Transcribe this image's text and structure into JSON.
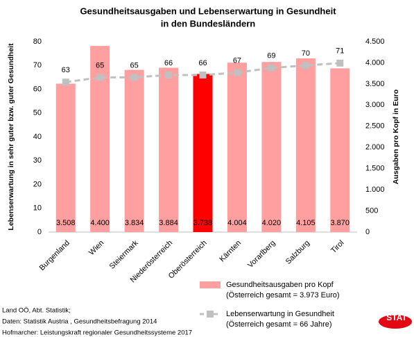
{
  "chart_data": {
    "type": "bar-line",
    "title": [
      "Gesundheitsausgaben und Lebenserwartung in Gesundheit",
      "in den Bundesländern"
    ],
    "ylabel": "Lebenserwartung in sehr guter bzw. guter Gesundheit",
    "y2label": "Ausgaben pro Kopf in Euro",
    "categories": [
      "Burgenland",
      "Wien",
      "Steiermark",
      "Niederösterreich",
      "Oberösterreich",
      "Kärnten",
      "Vorarlberg",
      "Salzburg",
      "Tirol"
    ],
    "ylim": [
      0,
      80
    ],
    "yticks": [
      0,
      10,
      20,
      30,
      40,
      50,
      60,
      70,
      80
    ],
    "y2lim": [
      0,
      4500
    ],
    "y2ticks": [
      0,
      500,
      {
        "value": 1000,
        "label": "1.000"
      },
      {
        "value": 1500,
        "label": "1.500"
      },
      {
        "value": 2000,
        "label": "2.000"
      },
      {
        "value": 2500,
        "label": "2.500"
      },
      {
        "value": 3000,
        "label": "3.000"
      },
      {
        "value": 3500,
        "label": "3.500"
      },
      {
        "value": 4000,
        "label": "4.000"
      },
      {
        "value": 4500,
        "label": "4.500"
      }
    ],
    "series": [
      {
        "name": "Gesundheitsausgaben pro Kopf",
        "legend_note": "(Österreich gesamt = 3.973 Euro)",
        "type": "bar",
        "axis": "y2",
        "color": "#ff9f9f",
        "colors": [
          "#ff9f9f",
          "#ff9f9f",
          "#ff9f9f",
          "#ff9f9f",
          "#ff0000",
          "#ff9f9f",
          "#ff9f9f",
          "#ff9f9f",
          "#ff9f9f"
        ],
        "values": [
          3508,
          4400,
          3834,
          3884,
          3738,
          4004,
          4020,
          4105,
          3870
        ],
        "value_labels": [
          "3.508",
          "4.400",
          "3.834",
          "3.884",
          "3.738",
          "4.004",
          "4.020",
          "4.105",
          "3.870"
        ]
      },
      {
        "name": "Lebenserwartung in Gesundheit",
        "legend_note": "(Österreich gesamt = 66 Jahre)",
        "type": "line",
        "axis": "y",
        "color": "#c0c0c0",
        "values": [
          63,
          65,
          65,
          66,
          66,
          67,
          69,
          70,
          71
        ]
      }
    ],
    "sources": [
      "Land OÖ, Abt. Statistik;",
      "Daten: Statistik Austria , Gesundheitsbefragung 2014",
      "Hofmarcher: Leistungskraft regionaler Gesundheitssysteme 2017"
    ],
    "logo": "STAT"
  }
}
